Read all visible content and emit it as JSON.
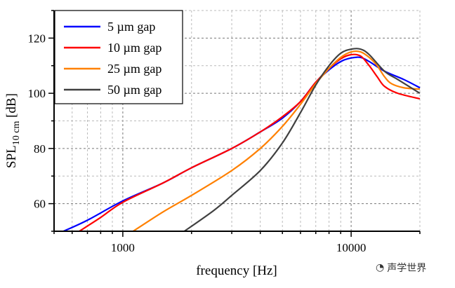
{
  "chart_data": {
    "type": "line",
    "xlabel": "frequency [Hz]",
    "ylabel_main": "SPL",
    "ylabel_sub": "10 cm",
    "ylabel_unit": " [dB]",
    "xscale": "log",
    "xlim": [
      500,
      20000
    ],
    "ylim": [
      50,
      130
    ],
    "xticks": [
      1000,
      10000
    ],
    "xtick_labels": [
      "1000",
      "10000"
    ],
    "yticks": [
      60,
      80,
      100,
      120
    ],
    "ytick_labels": [
      "60",
      "80",
      "100",
      "120"
    ],
    "grid": true,
    "legend_position": "top-left",
    "series": [
      {
        "name": "5 µm gap",
        "color": "#0000ff",
        "points": [
          [
            550,
            50
          ],
          [
            700,
            54
          ],
          [
            1000,
            61
          ],
          [
            1500,
            67.5
          ],
          [
            2000,
            73
          ],
          [
            3000,
            80
          ],
          [
            4000,
            86
          ],
          [
            5000,
            91
          ],
          [
            6000,
            97
          ],
          [
            7000,
            104
          ],
          [
            8000,
            108.5
          ],
          [
            9000,
            111.5
          ],
          [
            10000,
            112.8
          ],
          [
            11000,
            113
          ],
          [
            12000,
            111.5
          ],
          [
            14000,
            108
          ],
          [
            17000,
            105
          ],
          [
            20000,
            102
          ]
        ]
      },
      {
        "name": "10 µm gap",
        "color": "#ff0000",
        "points": [
          [
            645,
            50
          ],
          [
            800,
            55
          ],
          [
            1000,
            60.5
          ],
          [
            1500,
            67.5
          ],
          [
            2000,
            73
          ],
          [
            3000,
            80
          ],
          [
            4000,
            86
          ],
          [
            5000,
            91.5
          ],
          [
            6000,
            97
          ],
          [
            7000,
            104
          ],
          [
            8000,
            109
          ],
          [
            9000,
            112.5
          ],
          [
            10000,
            114
          ],
          [
            11000,
            113.5
          ],
          [
            12000,
            110
          ],
          [
            13000,
            106
          ],
          [
            14000,
            102.5
          ],
          [
            16000,
            100
          ],
          [
            20000,
            98
          ]
        ]
      },
      {
        "name": "25 µm gap",
        "color": "#ff8000",
        "points": [
          [
            1110,
            50
          ],
          [
            1500,
            57
          ],
          [
            2000,
            63
          ],
          [
            3000,
            72
          ],
          [
            4000,
            80
          ],
          [
            5000,
            88
          ],
          [
            6000,
            96
          ],
          [
            7000,
            103.5
          ],
          [
            8000,
            109
          ],
          [
            9000,
            113
          ],
          [
            10000,
            115
          ],
          [
            11000,
            115
          ],
          [
            12000,
            113
          ],
          [
            13000,
            110
          ],
          [
            14000,
            106
          ],
          [
            15000,
            103.5
          ],
          [
            17000,
            102
          ],
          [
            20000,
            101.5
          ]
        ]
      },
      {
        "name": "50 µm gap",
        "color": "#404040",
        "points": [
          [
            1860,
            50
          ],
          [
            2500,
            57.5
          ],
          [
            3000,
            63
          ],
          [
            4000,
            72
          ],
          [
            5000,
            82
          ],
          [
            6000,
            93
          ],
          [
            7000,
            103
          ],
          [
            8000,
            110
          ],
          [
            9000,
            114.5
          ],
          [
            10000,
            116
          ],
          [
            11000,
            116
          ],
          [
            12000,
            114
          ],
          [
            14000,
            108
          ],
          [
            16000,
            105
          ],
          [
            20000,
            100
          ]
        ]
      }
    ]
  },
  "watermark": "声学世界"
}
